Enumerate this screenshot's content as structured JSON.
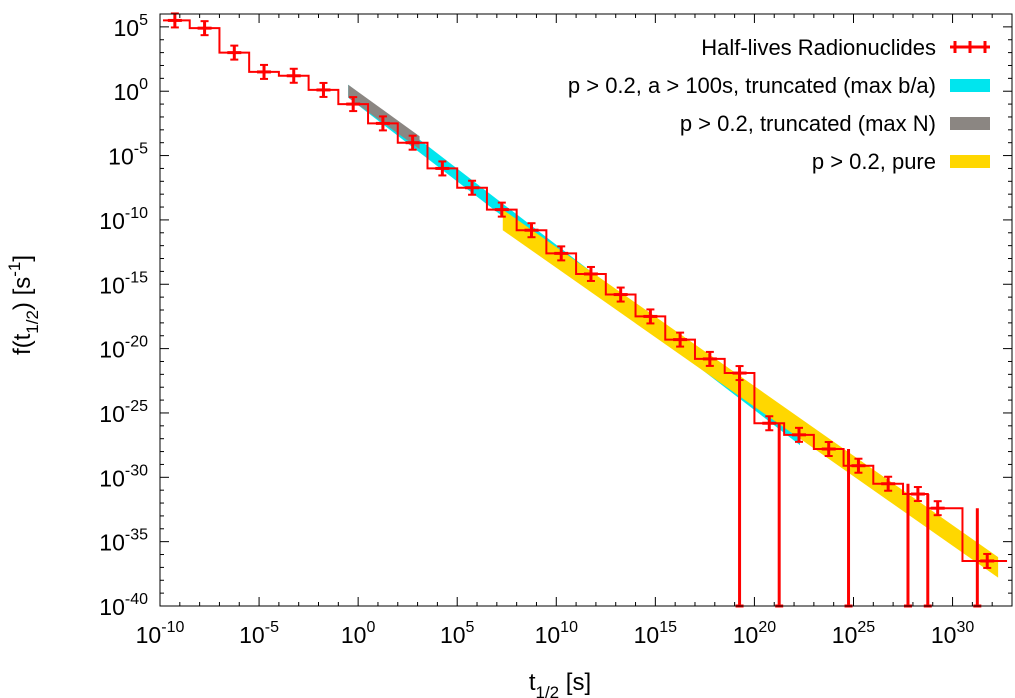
{
  "chart_data": {
    "type": "line",
    "xlabel": {
      "base": "t",
      "sub": "1/2",
      "tail": " [s]"
    },
    "ylabel": {
      "base": "f(t",
      "sub": "1/2",
      "mid": ") [s",
      "sup": "-1",
      "tail": "]"
    },
    "x_scale": "log10",
    "y_scale": "log10",
    "xlim_exponent": [
      -10,
      33
    ],
    "ylim_exponent": [
      -40,
      6
    ],
    "x_ticks_exponent": [
      -10,
      -5,
      0,
      5,
      10,
      15,
      20,
      25,
      30
    ],
    "y_ticks_exponent": [
      -40,
      -35,
      -30,
      -25,
      -20,
      -15,
      -10,
      -5,
      0,
      5
    ],
    "tick_base": "10",
    "grid": false,
    "legend_position": "top-right",
    "legend": [
      {
        "label": "Half-lives Radionuclides",
        "color": "#ff0000",
        "style": "errorbars"
      },
      {
        "label": "p > 0.2, a > 100s, truncated (max b/a)",
        "color": "#00e5ee",
        "style": "band"
      },
      {
        "label": "p > 0.2, truncated (max N)",
        "color": "#8b8682",
        "style": "band"
      },
      {
        "label": "p > 0.2, pure",
        "color": "#ffd700",
        "style": "band"
      }
    ],
    "series": [
      {
        "name": "Half-lives Radionuclides",
        "color": "#ff0000",
        "x_log10": [
          -9.25,
          -7.75,
          -6.25,
          -4.75,
          -3.25,
          -1.75,
          -0.25,
          1.25,
          2.75,
          4.25,
          5.75,
          7.25,
          8.75,
          10.25,
          11.75,
          13.25,
          14.75,
          16.25,
          17.75,
          19.25,
          20.75,
          22.25,
          23.75,
          25.25,
          26.75,
          28.25,
          29.25,
          31.75
        ],
        "y_log10": [
          5.5,
          4.9,
          3.0,
          1.5,
          1.2,
          0.1,
          -1.0,
          -2.5,
          -4.0,
          -6.0,
          -7.5,
          -9.2,
          -10.8,
          -12.6,
          -14.2,
          -15.8,
          -17.5,
          -19.3,
          -20.8,
          -21.9,
          -25.8,
          -26.7,
          -27.8,
          -29.1,
          -30.5,
          -31.3,
          -32.4,
          -36.5
        ]
      }
    ],
    "zero_bins_log10_x": [
      19.25,
      21.25,
      24.75,
      27.75,
      28.75,
      31.25
    ],
    "bands": [
      {
        "name": "p > 0.2, a > 100s, truncated (max b/a)",
        "color": "#00e5ee",
        "x_log10": [
          -0.5,
          22.3
        ],
        "y_log10": [
          0.0,
          -27.0
        ],
        "halfwidth": 0.5
      },
      {
        "name": "p > 0.2, truncated (max N)",
        "color": "#8b8682",
        "x_log10": [
          -0.5,
          3.1
        ],
        "y_log10": [
          0.0,
          -4.0
        ],
        "halfwidth": 0.5
      },
      {
        "name": "p > 0.2, pure",
        "color": "#ffd700",
        "x_log10": [
          7.3,
          32.3
        ],
        "y_log10": [
          -10.0,
          -37.0
        ],
        "halfwidth": 0.8
      }
    ]
  }
}
